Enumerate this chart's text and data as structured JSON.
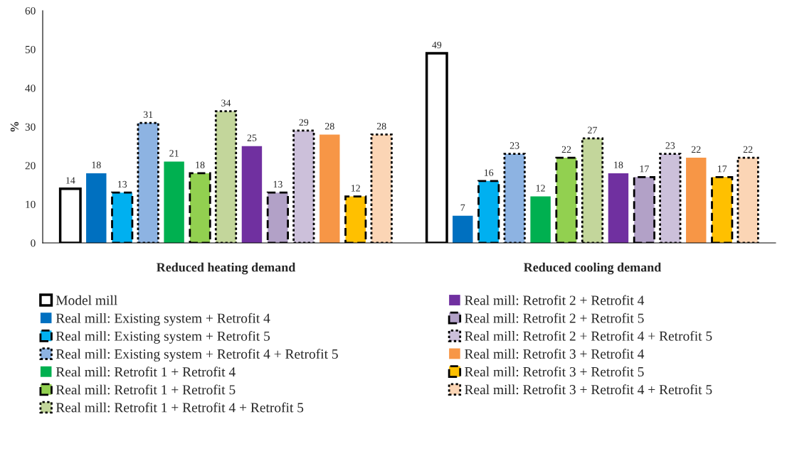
{
  "chart_data": {
    "type": "bar",
    "ylabel": "%",
    "categories": [
      "Reduced heating demand",
      "Reduced cooling demand"
    ],
    "ylim": [
      0,
      60
    ],
    "yticks": [
      0,
      10,
      20,
      30,
      40,
      50,
      60
    ],
    "data_labels": true,
    "legend": "bottom",
    "grid": false,
    "series": [
      {
        "name": "Model mill",
        "color": "#ffffff",
        "line_style": "solid",
        "values": [
          14,
          49
        ]
      },
      {
        "name": "Real mill: Existing system + Retrofit 4",
        "color": "#0070c0",
        "values": [
          18,
          7
        ]
      },
      {
        "name": "Real mill: Existing system + Retrofit 5",
        "color": "#00b0f0",
        "line_style": "dashed",
        "values": [
          13,
          16
        ]
      },
      {
        "name": "Real mill: Existing system + Retrofit 4 + Retrofit 5",
        "color": "#8db3e2",
        "line_style": "dotted",
        "values": [
          31,
          23
        ]
      },
      {
        "name": "Real mill: Retrofit 1 + Retrofit 4",
        "color": "#00b050",
        "values": [
          21,
          12
        ]
      },
      {
        "name": "Real mill: Retrofit 1 + Retrofit 5",
        "color": "#92d050",
        "line_style": "dashed",
        "values": [
          18,
          22
        ]
      },
      {
        "name": "Real mill: Retrofit 1 + Retrofit 4 + Retrofit 5",
        "color": "#c3d69b",
        "line_style": "dotted",
        "values": [
          34,
          27
        ]
      },
      {
        "name": "Real mill: Retrofit 2 + Retrofit 4",
        "color": "#7030a0",
        "values": [
          25,
          18
        ]
      },
      {
        "name": "Real mill: Retrofit 2 + Retrofit 5",
        "color": "#b2a1c7",
        "line_style": "dashed",
        "values": [
          13,
          17
        ]
      },
      {
        "name": "Real mill: Retrofit 2 + Retrofit 4 + Retrofit 5",
        "color": "#ccc0da",
        "line_style": "dotted",
        "values": [
          29,
          23
        ]
      },
      {
        "name": "Real mill: Retrofit 3 + Retrofit 4",
        "color": "#f79646",
        "values": [
          28,
          22
        ]
      },
      {
        "name": "Real mill: Retrofit 3 + Retrofit 5",
        "color": "#ffc000",
        "line_style": "dashed",
        "values": [
          12,
          17
        ]
      },
      {
        "name": "Real mill: Retrofit 3 + Retrofit 4 + Retrofit 5",
        "color": "#fbd5b5",
        "line_style": "dotted",
        "values": [
          28,
          22
        ]
      }
    ]
  }
}
